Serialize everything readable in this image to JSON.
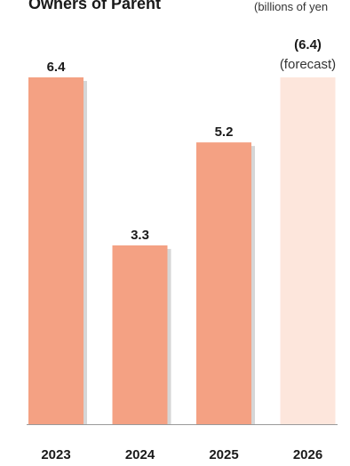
{
  "chart_data": {
    "type": "bar",
    "title": "Owners of Parent",
    "unit_label": "(billions of yen",
    "categories": [
      "2023",
      "2024",
      "2025",
      "2026"
    ],
    "values": [
      6.4,
      3.3,
      5.2,
      6.4
    ],
    "value_labels": [
      "6.4",
      "3.3",
      "5.2",
      "(6.4)"
    ],
    "forecast_note": "(forecast)",
    "forecast_index": 3,
    "ylim": [
      0,
      6.4
    ],
    "colors": {
      "actual": "#f4a183",
      "forecast": "#fde6dc",
      "shadow": "#d6d6d6",
      "axis": "#9a9a9a"
    }
  }
}
